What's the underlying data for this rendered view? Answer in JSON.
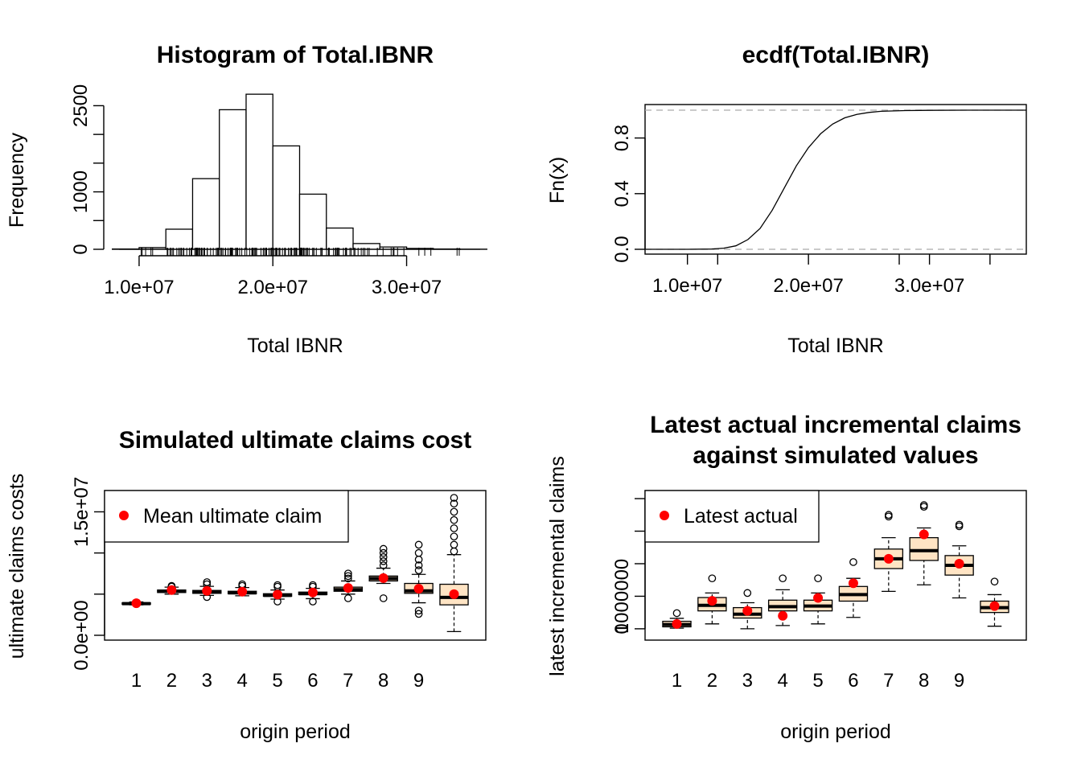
{
  "chart_data": [
    {
      "type": "histogram",
      "title": "Histogram of Total.IBNR",
      "xlabel": "Total IBNR",
      "ylabel": "Frequency",
      "xlim": [
        8500000,
        35500000
      ],
      "ylim": [
        0,
        2800
      ],
      "xticks": [
        10000000,
        20000000,
        30000000
      ],
      "xtick_labels": [
        "1.0e+07",
        "2.0e+07",
        "3.0e+07"
      ],
      "yticks": [
        0,
        500,
        1000,
        1500,
        2000,
        2500
      ],
      "ytick_labels": [
        "0",
        "",
        "1000",
        "",
        "",
        "2500"
      ],
      "bins": [
        {
          "from": 8000000,
          "to": 10000000,
          "count": 5
        },
        {
          "from": 10000000,
          "to": 12000000,
          "count": 30
        },
        {
          "from": 12000000,
          "to": 14000000,
          "count": 350
        },
        {
          "from": 14000000,
          "to": 16000000,
          "count": 1230
        },
        {
          "from": 16000000,
          "to": 18000000,
          "count": 2430
        },
        {
          "from": 18000000,
          "to": 20000000,
          "count": 2700
        },
        {
          "from": 20000000,
          "to": 22000000,
          "count": 1800
        },
        {
          "from": 22000000,
          "to": 24000000,
          "count": 960
        },
        {
          "from": 24000000,
          "to": 26000000,
          "count": 370
        },
        {
          "from": 26000000,
          "to": 28000000,
          "count": 100
        },
        {
          "from": 28000000,
          "to": 30000000,
          "count": 40
        },
        {
          "from": 30000000,
          "to": 32000000,
          "count": 15
        },
        {
          "from": 32000000,
          "to": 34000000,
          "count": 5
        },
        {
          "from": 34000000,
          "to": 36000000,
          "count": 2
        }
      ],
      "rug": true
    },
    {
      "type": "line",
      "title": "ecdf(Total.IBNR)",
      "xlabel": "Total IBNR",
      "ylabel": "Fn(x)",
      "xlim": [
        6500000,
        38000000
      ],
      "ylim": [
        0,
        1
      ],
      "xticks": [
        10000000,
        20000000,
        30000000
      ],
      "xtick_labels": [
        "1.0e+07",
        "2.0e+07",
        "3.0e+07"
      ],
      "yticks": [
        0,
        0.4,
        0.8
      ],
      "ytick_labels": [
        "0.0",
        "0.4",
        "0.8"
      ],
      "x": [
        6500000,
        10000000,
        12000000,
        13000000,
        14000000,
        15000000,
        16000000,
        17000000,
        18000000,
        19000000,
        20000000,
        21000000,
        22000000,
        23000000,
        24000000,
        25000000,
        26000000,
        28000000,
        30000000,
        33000000,
        38000000
      ],
      "y": [
        0,
        0,
        0.002,
        0.008,
        0.025,
        0.07,
        0.15,
        0.28,
        0.44,
        0.6,
        0.73,
        0.83,
        0.9,
        0.945,
        0.97,
        0.984,
        0.992,
        0.997,
        0.999,
        1,
        1
      ],
      "reference_lines": [
        0,
        1
      ]
    },
    {
      "type": "boxplot",
      "title": "Simulated ultimate claims cost",
      "xlabel": "origin period",
      "ylabel": "ultimate claims costs",
      "ylim": [
        0,
        17000000
      ],
      "yticks": [
        0,
        5000000,
        10000000,
        15000000
      ],
      "ytick_labels": [
        "0.0e+00",
        "",
        "",
        "1.5e+07"
      ],
      "categories": [
        "1",
        "2",
        "3",
        "4",
        "5",
        "6",
        "7",
        "8",
        "9",
        ""
      ],
      "box_fill": "#ffe4c4",
      "mean_color": "#ff0000",
      "legend": {
        "label": "Mean ultimate claim",
        "position": "top-left"
      },
      "boxes": [
        {
          "lw": 3700000,
          "q1": 3800000,
          "med": 3850000,
          "q3": 3950000,
          "uw": 4050000,
          "out": [],
          "mean": 3900000
        },
        {
          "lw": 5000000,
          "q1": 5200000,
          "med": 5350000,
          "q3": 5500000,
          "uw": 5850000,
          "out": [
            5900000,
            6000000
          ],
          "mean": 5500000
        },
        {
          "lw": 4850000,
          "q1": 5100000,
          "med": 5250000,
          "q3": 5450000,
          "uw": 5950000,
          "out": [
            4650000,
            6200000,
            6450000
          ],
          "mean": 5400000
        },
        {
          "lw": 4800000,
          "q1": 5050000,
          "med": 5150000,
          "q3": 5350000,
          "uw": 5800000,
          "out": [
            6000000,
            6200000
          ],
          "mean": 5300000
        },
        {
          "lw": 4400000,
          "q1": 4750000,
          "med": 4850000,
          "q3": 5050000,
          "uw": 5500000,
          "out": [
            4100000,
            5900000,
            6100000
          ],
          "mean": 4950000
        },
        {
          "lw": 4450000,
          "q1": 4950000,
          "med": 5050000,
          "q3": 5250000,
          "uw": 5700000,
          "out": [
            4100000,
            5900000,
            6100000
          ],
          "mean": 5200000
        },
        {
          "lw": 5000000,
          "q1": 5350000,
          "med": 5550000,
          "q3": 5850000,
          "uw": 6600000,
          "out": [
            4500000,
            6900000,
            7200000,
            7500000
          ],
          "mean": 5750000
        },
        {
          "lw": 6300000,
          "q1": 6600000,
          "med": 6900000,
          "q3": 7200000,
          "uw": 8150000,
          "out": [
            4500000,
            8500000,
            9000000,
            9500000,
            10000000,
            10500000
          ],
          "mean": 6950000
        },
        {
          "lw": 3950000,
          "q1": 5100000,
          "med": 5400000,
          "q3": 6300000,
          "uw": 7400000,
          "out": [
            2600000,
            3000000,
            7900000,
            8500000,
            9200000,
            10000000,
            11000000
          ],
          "mean": 5650000
        },
        {
          "lw": 450000,
          "q1": 3700000,
          "med": 4600000,
          "q3": 6200000,
          "uw": 9800000,
          "out": [
            10200000,
            11000000,
            12000000,
            13000000,
            14000000,
            15000000,
            16000000,
            16700000
          ],
          "mean": 5000000
        }
      ]
    },
    {
      "type": "boxplot",
      "title": "Latest actual incremental claims\nagainst simulated values",
      "title_lines": [
        "Latest actual incremental claims",
        "against simulated values"
      ],
      "xlabel": "origin period",
      "ylabel": "latest incremental claims",
      "ylim": [
        -200000,
        4100000
      ],
      "yticks": [
        0,
        1000000,
        2000000,
        3000000,
        4000000
      ],
      "ytick_labels": [
        "0",
        "1000000",
        "",
        "",
        ""
      ],
      "categories": [
        "1",
        "2",
        "3",
        "4",
        "5",
        "6",
        "7",
        "8",
        "9",
        ""
      ],
      "box_fill": "#ffe4c4",
      "mean_color": "#ff0000",
      "legend": {
        "label": "Latest actual",
        "position": "top-left"
      },
      "boxes": [
        {
          "lw": 20000,
          "q1": 60000,
          "med": 130000,
          "q3": 230000,
          "uw": 320000,
          "out": [
            480000
          ],
          "actual": 150000
        },
        {
          "lw": 150000,
          "q1": 550000,
          "med": 720000,
          "q3": 960000,
          "uw": 1100000,
          "out": [
            1550000
          ],
          "actual": 860000
        },
        {
          "lw": 0,
          "q1": 330000,
          "med": 450000,
          "q3": 650000,
          "uw": 800000,
          "out": [
            1100000
          ],
          "actual": 550000
        },
        {
          "lw": 100000,
          "q1": 550000,
          "med": 680000,
          "q3": 880000,
          "uw": 1200000,
          "out": [
            1550000
          ],
          "actual": 400000
        },
        {
          "lw": 150000,
          "q1": 550000,
          "med": 700000,
          "q3": 880000,
          "uw": 1100000,
          "out": [
            1550000
          ],
          "actual": 950000
        },
        {
          "lw": 350000,
          "q1": 850000,
          "med": 1050000,
          "q3": 1300000,
          "uw": 1550000,
          "out": [
            2050000
          ],
          "actual": 1400000
        },
        {
          "lw": 1150000,
          "q1": 1850000,
          "med": 2150000,
          "q3": 2450000,
          "uw": 2800000,
          "out": [
            3450000,
            3500000
          ],
          "actual": 2150000
        },
        {
          "lw": 1350000,
          "q1": 2100000,
          "med": 2400000,
          "q3": 2800000,
          "uw": 3100000,
          "out": [
            3750000,
            3800000
          ],
          "actual": 2900000
        },
        {
          "lw": 950000,
          "q1": 1650000,
          "med": 1950000,
          "q3": 2250000,
          "uw": 2550000,
          "out": [
            3150000,
            3200000
          ],
          "actual": 2000000
        },
        {
          "lw": 80000,
          "q1": 500000,
          "med": 650000,
          "q3": 850000,
          "uw": 1050000,
          "out": [
            1450000
          ],
          "actual": 700000
        }
      ]
    }
  ]
}
